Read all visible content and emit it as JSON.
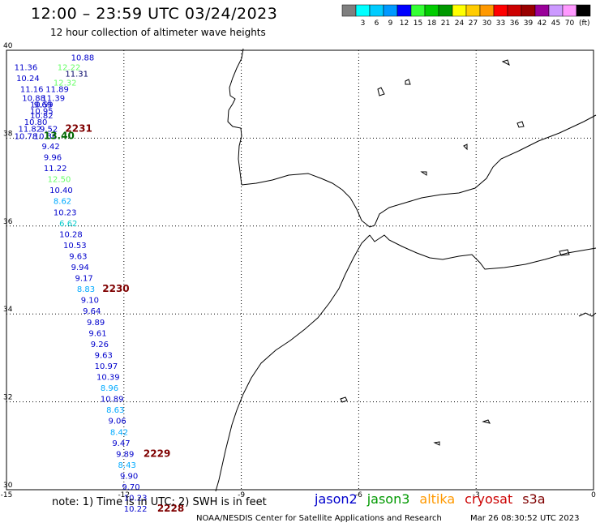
{
  "title": "12:00 – 23:59 UTC 03/24/2023",
  "subtitle": "12 hour collection of altimeter wave heights",
  "color_scale": {
    "units": "(ft)",
    "bins": [
      {
        "label": "",
        "color": "#7f7f7f"
      },
      {
        "label": "3",
        "color": "#00ffff"
      },
      {
        "label": "6",
        "color": "#00ccff"
      },
      {
        "label": "9",
        "color": "#0099ff"
      },
      {
        "label": "12",
        "color": "#0000ff"
      },
      {
        "label": "15",
        "color": "#33ff33"
      },
      {
        "label": "18",
        "color": "#00cc00"
      },
      {
        "label": "21",
        "color": "#009900"
      },
      {
        "label": "24",
        "color": "#ffff00"
      },
      {
        "label": "27",
        "color": "#ffcc00"
      },
      {
        "label": "30",
        "color": "#ff9900"
      },
      {
        "label": "33",
        "color": "#ff0000"
      },
      {
        "label": "36",
        "color": "#cc0000"
      },
      {
        "label": "39",
        "color": "#990000"
      },
      {
        "label": "42",
        "color": "#990099"
      },
      {
        "label": "45",
        "color": "#cc99ff"
      },
      {
        "label": "70",
        "color": "#ff99ff"
      },
      {
        "label": "",
        "color": "#000000"
      }
    ]
  },
  "map": {
    "lon_range": [
      -15,
      0
    ],
    "lat_range": [
      30,
      40
    ],
    "lon_ticks": [
      "-15",
      "-12",
      "-9",
      "-6",
      "-3",
      "0"
    ],
    "lat_ticks": [
      "40",
      "38",
      "36",
      "34",
      "32",
      "30"
    ]
  },
  "observations": [
    {
      "text": "10.88",
      "lon": -13.35,
      "lat": 39.77,
      "color": "#0000cc"
    },
    {
      "text": "11.36",
      "lon": -14.8,
      "lat": 39.55,
      "color": "#0000cc"
    },
    {
      "text": "12.22",
      "lon": -13.7,
      "lat": 39.55,
      "color": "#66ff66"
    },
    {
      "text": "11.31",
      "lon": -13.5,
      "lat": 39.4,
      "color": "#000066"
    },
    {
      "text": "10.24",
      "lon": -14.75,
      "lat": 39.3,
      "color": "#0000cc"
    },
    {
      "text": "12.32",
      "lon": -13.8,
      "lat": 39.2,
      "color": "#66ff66"
    },
    {
      "text": "11.16",
      "lon": -14.65,
      "lat": 39.05,
      "color": "#0000cc"
    },
    {
      "text": "11.89",
      "lon": -14.0,
      "lat": 39.05,
      "color": "#0000cc"
    },
    {
      "text": "10.88",
      "lon": -14.6,
      "lat": 38.85,
      "color": "#0000cc"
    },
    {
      "text": "11.39",
      "lon": -14.1,
      "lat": 38.85,
      "color": "#0000cc"
    },
    {
      "text": "10.59",
      "lon": -14.4,
      "lat": 38.7,
      "color": "#0000cc"
    },
    {
      "text": "9.69",
      "lon": -14.3,
      "lat": 38.7,
      "color": "#0000cc"
    },
    {
      "text": "10.95",
      "lon": -14.4,
      "lat": 38.55,
      "color": "#0000cc"
    },
    {
      "text": "10.82",
      "lon": -14.4,
      "lat": 38.45,
      "color": "#0000cc"
    },
    {
      "text": "10.80",
      "lon": -14.55,
      "lat": 38.3,
      "color": "#0000cc"
    },
    {
      "text": "11.82",
      "lon": -14.7,
      "lat": 38.15,
      "color": "#0000cc"
    },
    {
      "text": "9.52",
      "lon": -14.15,
      "lat": 38.15,
      "color": "#0000cc"
    },
    {
      "text": "2231",
      "lon": -13.5,
      "lat": 38.15,
      "color": "#7f0000",
      "bold": true
    },
    {
      "text": "10.78",
      "lon": -14.8,
      "lat": 37.98,
      "color": "#0000cc"
    },
    {
      "text": "10.36",
      "lon": -14.3,
      "lat": 37.98,
      "color": "#0000cc"
    },
    {
      "text": "13.40",
      "lon": -14.05,
      "lat": 37.98,
      "color": "#006600",
      "bold": true
    },
    {
      "text": "9.42",
      "lon": -14.1,
      "lat": 37.75,
      "color": "#0000cc"
    },
    {
      "text": "9.96",
      "lon": -14.05,
      "lat": 37.5,
      "color": "#0000cc"
    },
    {
      "text": "11.22",
      "lon": -14.05,
      "lat": 37.25,
      "color": "#0000cc"
    },
    {
      "text": "12.50",
      "lon": -13.95,
      "lat": 37.0,
      "color": "#66ff66"
    },
    {
      "text": "10.40",
      "lon": -13.9,
      "lat": 36.75,
      "color": "#0000cc"
    },
    {
      "text": "8.62",
      "lon": -13.8,
      "lat": 36.5,
      "color": "#00aaff"
    },
    {
      "text": "10.23",
      "lon": -13.8,
      "lat": 36.25,
      "color": "#0000cc"
    },
    {
      "text": "6.62",
      "lon": -13.65,
      "lat": 36.0,
      "color": "#00cccc"
    },
    {
      "text": "10.28",
      "lon": -13.65,
      "lat": 35.75,
      "color": "#0000cc"
    },
    {
      "text": "10.53",
      "lon": -13.55,
      "lat": 35.5,
      "color": "#0000cc"
    },
    {
      "text": "9.63",
      "lon": -13.4,
      "lat": 35.25,
      "color": "#0000cc"
    },
    {
      "text": "9.94",
      "lon": -13.35,
      "lat": 35.0,
      "color": "#0000cc"
    },
    {
      "text": "9.17",
      "lon": -13.25,
      "lat": 34.75,
      "color": "#0000cc"
    },
    {
      "text": "8.83",
      "lon": -13.2,
      "lat": 34.5,
      "color": "#00aaff"
    },
    {
      "text": "2230",
      "lon": -12.55,
      "lat": 34.5,
      "color": "#7f0000",
      "bold": true
    },
    {
      "text": "9.10",
      "lon": -13.1,
      "lat": 34.25,
      "color": "#0000cc"
    },
    {
      "text": "9.64",
      "lon": -13.05,
      "lat": 34.0,
      "color": "#0000cc"
    },
    {
      "text": "9.89",
      "lon": -12.95,
      "lat": 33.75,
      "color": "#0000cc"
    },
    {
      "text": "9.61",
      "lon": -12.9,
      "lat": 33.5,
      "color": "#0000cc"
    },
    {
      "text": "9.26",
      "lon": -12.85,
      "lat": 33.25,
      "color": "#0000cc"
    },
    {
      "text": "9.63",
      "lon": -12.75,
      "lat": 33.0,
      "color": "#0000cc"
    },
    {
      "text": "10.97",
      "lon": -12.75,
      "lat": 32.75,
      "color": "#0000cc"
    },
    {
      "text": "10.39",
      "lon": -12.7,
      "lat": 32.5,
      "color": "#0000cc"
    },
    {
      "text": "8.96",
      "lon": -12.6,
      "lat": 32.25,
      "color": "#00aaff"
    },
    {
      "text": "10.89",
      "lon": -12.6,
      "lat": 32.0,
      "color": "#0000cc"
    },
    {
      "text": "8.63",
      "lon": -12.45,
      "lat": 31.75,
      "color": "#00aaff"
    },
    {
      "text": "9.06",
      "lon": -12.4,
      "lat": 31.5,
      "color": "#0000cc"
    },
    {
      "text": "8.42",
      "lon": -12.35,
      "lat": 31.25,
      "color": "#00aaff"
    },
    {
      "text": "9.47",
      "lon": -12.3,
      "lat": 31.0,
      "color": "#0000cc"
    },
    {
      "text": "9.89",
      "lon": -12.2,
      "lat": 30.75,
      "color": "#0000cc"
    },
    {
      "text": "2229",
      "lon": -11.5,
      "lat": 30.75,
      "color": "#7f0000",
      "bold": true
    },
    {
      "text": "8.43",
      "lon": -12.15,
      "lat": 30.5,
      "color": "#00aaff"
    },
    {
      "text": "9.90",
      "lon": -12.1,
      "lat": 30.25,
      "color": "#0000cc"
    },
    {
      "text": "9.70",
      "lon": -12.05,
      "lat": 30.0,
      "color": "#0000cc"
    },
    {
      "text": "10.23",
      "lon": -12.0,
      "lat": 29.75,
      "color": "#0000cc"
    },
    {
      "text": "10.22",
      "lon": -12.0,
      "lat": 29.5,
      "color": "#0000cc"
    },
    {
      "text": "2228",
      "lon": -11.15,
      "lat": 29.5,
      "color": "#7f0000",
      "bold": true
    }
  ],
  "note": "note:  1) Time is in UTC;  2) SWH is in feet",
  "legend": [
    {
      "label": "jason2",
      "color": "#0000cc"
    },
    {
      "label": "jason3",
      "color": "#009900"
    },
    {
      "label": "altika",
      "color": "#ff9900"
    },
    {
      "label": "cryosat",
      "color": "#cc0000"
    },
    {
      "label": "s3a",
      "color": "#7f0000"
    }
  ],
  "credit": "NOAA/NESDIS Center for Satellite Applications and Research",
  "timestamp": "Mar 26 08:30:52 UTC 2023"
}
